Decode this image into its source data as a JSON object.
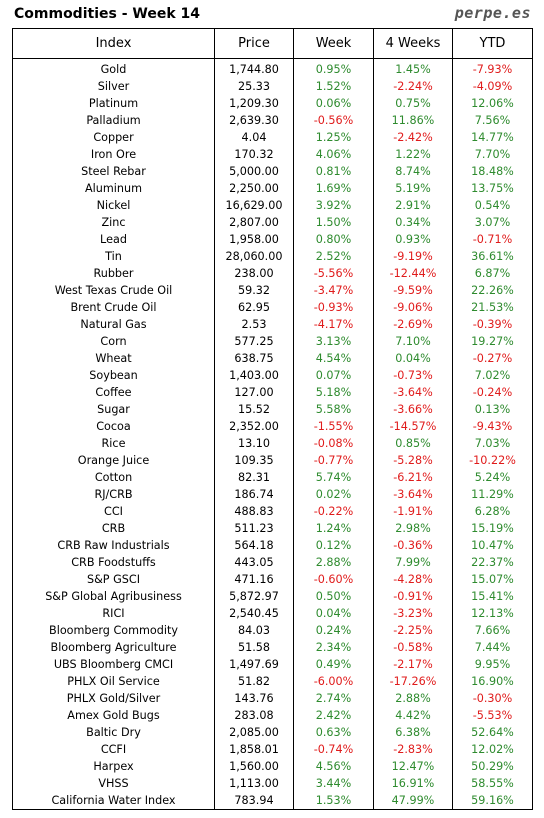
{
  "title": "Commodities - Week 14",
  "brand": "perpe.es",
  "columns": [
    "Index",
    "Price",
    "Week",
    "4 Weeks",
    "YTD"
  ],
  "rows": [
    {
      "index": "Gold",
      "price": "1,744.80",
      "week": "0.95%",
      "four_weeks": "1.45%",
      "ytd": "-7.93%"
    },
    {
      "index": "Silver",
      "price": "25.33",
      "week": "1.52%",
      "four_weeks": "-2.24%",
      "ytd": "-4.09%"
    },
    {
      "index": "Platinum",
      "price": "1,209.30",
      "week": "0.06%",
      "four_weeks": "0.75%",
      "ytd": "12.06%"
    },
    {
      "index": "Palladium",
      "price": "2,639.30",
      "week": "-0.56%",
      "four_weeks": "11.86%",
      "ytd": "7.56%"
    },
    {
      "index": "Copper",
      "price": "4.04",
      "week": "1.25%",
      "four_weeks": "-2.42%",
      "ytd": "14.77%"
    },
    {
      "index": "Iron Ore",
      "price": "170.32",
      "week": "4.06%",
      "four_weeks": "1.22%",
      "ytd": "7.70%"
    },
    {
      "index": "Steel Rebar",
      "price": "5,000.00",
      "week": "0.81%",
      "four_weeks": "8.74%",
      "ytd": "18.48%"
    },
    {
      "index": "Aluminum",
      "price": "2,250.00",
      "week": "1.69%",
      "four_weeks": "5.19%",
      "ytd": "13.75%"
    },
    {
      "index": "Nickel",
      "price": "16,629.00",
      "week": "3.92%",
      "four_weeks": "2.91%",
      "ytd": "0.54%"
    },
    {
      "index": "Zinc",
      "price": "2,807.00",
      "week": "1.50%",
      "four_weeks": "0.34%",
      "ytd": "3.07%"
    },
    {
      "index": "Lead",
      "price": "1,958.00",
      "week": "0.80%",
      "four_weeks": "0.93%",
      "ytd": "-0.71%"
    },
    {
      "index": "Tin",
      "price": "28,060.00",
      "week": "2.52%",
      "four_weeks": "-9.19%",
      "ytd": "36.61%"
    },
    {
      "index": "Rubber",
      "price": "238.00",
      "week": "-5.56%",
      "four_weeks": "-12.44%",
      "ytd": "6.87%"
    },
    {
      "index": "West Texas Crude Oil",
      "price": "59.32",
      "week": "-3.47%",
      "four_weeks": "-9.59%",
      "ytd": "22.26%"
    },
    {
      "index": "Brent Crude Oil",
      "price": "62.95",
      "week": "-0.93%",
      "four_weeks": "-9.06%",
      "ytd": "21.53%"
    },
    {
      "index": "Natural Gas",
      "price": "2.53",
      "week": "-4.17%",
      "four_weeks": "-2.69%",
      "ytd": "-0.39%"
    },
    {
      "index": "Corn",
      "price": "577.25",
      "week": "3.13%",
      "four_weeks": "7.10%",
      "ytd": "19.27%"
    },
    {
      "index": "Wheat",
      "price": "638.75",
      "week": "4.54%",
      "four_weeks": "0.04%",
      "ytd": "-0.27%"
    },
    {
      "index": "Soybean",
      "price": "1,403.00",
      "week": "0.07%",
      "four_weeks": "-0.73%",
      "ytd": "7.02%"
    },
    {
      "index": "Coffee",
      "price": "127.00",
      "week": "5.18%",
      "four_weeks": "-3.64%",
      "ytd": "-0.24%"
    },
    {
      "index": "Sugar",
      "price": "15.52",
      "week": "5.58%",
      "four_weeks": "-3.66%",
      "ytd": "0.13%"
    },
    {
      "index": "Cocoa",
      "price": "2,352.00",
      "week": "-1.55%",
      "four_weeks": "-14.57%",
      "ytd": "-9.43%"
    },
    {
      "index": "Rice",
      "price": "13.10",
      "week": "-0.08%",
      "four_weeks": "0.85%",
      "ytd": "7.03%"
    },
    {
      "index": "Orange Juice",
      "price": "109.35",
      "week": "-0.77%",
      "four_weeks": "-5.28%",
      "ytd": "-10.22%"
    },
    {
      "index": "Cotton",
      "price": "82.31",
      "week": "5.74%",
      "four_weeks": "-6.21%",
      "ytd": "5.24%"
    },
    {
      "index": "RJ/CRB",
      "price": "186.74",
      "week": "0.02%",
      "four_weeks": "-3.64%",
      "ytd": "11.29%"
    },
    {
      "index": "CCI",
      "price": "488.83",
      "week": "-0.22%",
      "four_weeks": "-1.91%",
      "ytd": "6.28%"
    },
    {
      "index": "CRB",
      "price": "511.23",
      "week": "1.24%",
      "four_weeks": "2.98%",
      "ytd": "15.19%"
    },
    {
      "index": "CRB Raw Industrials",
      "price": "564.18",
      "week": "0.12%",
      "four_weeks": "-0.36%",
      "ytd": "10.47%"
    },
    {
      "index": "CRB Foodstuffs",
      "price": "443.05",
      "week": "2.88%",
      "four_weeks": "7.99%",
      "ytd": "22.37%"
    },
    {
      "index": "S&P GSCI",
      "price": "471.16",
      "week": "-0.60%",
      "four_weeks": "-4.28%",
      "ytd": "15.07%"
    },
    {
      "index": "S&P Global Agribusiness",
      "price": "5,872.97",
      "week": "0.50%",
      "four_weeks": "-0.91%",
      "ytd": "15.41%"
    },
    {
      "index": "RICI",
      "price": "2,540.45",
      "week": "0.04%",
      "four_weeks": "-3.23%",
      "ytd": "12.13%"
    },
    {
      "index": "Bloomberg Commodity",
      "price": "84.03",
      "week": "0.24%",
      "four_weeks": "-2.25%",
      "ytd": "7.66%"
    },
    {
      "index": "Bloomberg Agriculture",
      "price": "51.58",
      "week": "2.34%",
      "four_weeks": "-0.58%",
      "ytd": "7.44%"
    },
    {
      "index": "UBS Bloomberg CMCI",
      "price": "1,497.69",
      "week": "0.49%",
      "four_weeks": "-2.17%",
      "ytd": "9.95%"
    },
    {
      "index": "PHLX Oil Service",
      "price": "51.82",
      "week": "-6.00%",
      "four_weeks": "-17.26%",
      "ytd": "16.90%"
    },
    {
      "index": "PHLX Gold/Silver",
      "price": "143.76",
      "week": "2.74%",
      "four_weeks": "2.88%",
      "ytd": "-0.30%"
    },
    {
      "index": "Amex Gold Bugs",
      "price": "283.08",
      "week": "2.42%",
      "four_weeks": "4.42%",
      "ytd": "-5.53%"
    },
    {
      "index": "Baltic Dry",
      "price": "2,085.00",
      "week": "0.63%",
      "four_weeks": "6.38%",
      "ytd": "52.64%"
    },
    {
      "index": "CCFI",
      "price": "1,858.01",
      "week": "-0.74%",
      "four_weeks": "-2.83%",
      "ytd": "12.02%"
    },
    {
      "index": "Harpex",
      "price": "1,560.00",
      "week": "4.56%",
      "four_weeks": "12.47%",
      "ytd": "50.29%"
    },
    {
      "index": "VHSS",
      "price": "1,113.00",
      "week": "3.44%",
      "four_weeks": "16.91%",
      "ytd": "58.55%"
    },
    {
      "index": "California Water Index",
      "price": "783.94",
      "week": "1.53%",
      "four_weeks": "47.99%",
      "ytd": "59.16%"
    }
  ],
  "colors": {
    "positive": "#2e8b2e",
    "negative": "#e01b1b",
    "brand": "#555555"
  }
}
